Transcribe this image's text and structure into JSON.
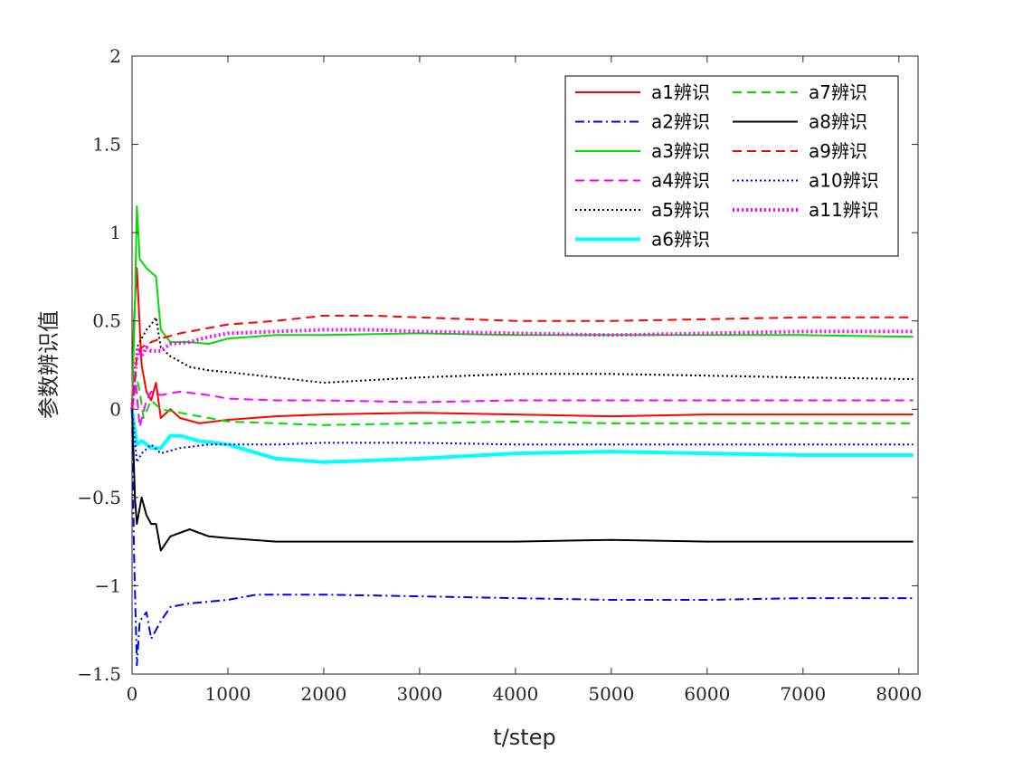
{
  "chart_data": {
    "type": "line",
    "title": "",
    "xlabel": "t/step",
    "ylabel": "参数辨识值",
    "xlim": [
      0,
      8200
    ],
    "ylim": [
      -1.5,
      2
    ],
    "xticks": [
      "0",
      "1000",
      "2000",
      "3000",
      "4000",
      "5000",
      "6000",
      "7000",
      "8000"
    ],
    "yticks": [
      "−1.5",
      "−1",
      "−0.5",
      "0",
      "0.5",
      "1",
      "1.5",
      "2"
    ],
    "grid": false,
    "legend_position": "top-right",
    "series": [
      {
        "name": "a1辨识",
        "color": "#ff0000",
        "dash": "solid",
        "width": 2,
        "points": [
          [
            0,
            0
          ],
          [
            20,
            0.5
          ],
          [
            50,
            0.8
          ],
          [
            100,
            0.25
          ],
          [
            150,
            0.1
          ],
          [
            200,
            0.05
          ],
          [
            250,
            0.15
          ],
          [
            300,
            -0.05
          ],
          [
            400,
            0
          ],
          [
            500,
            -0.05
          ],
          [
            700,
            -0.08
          ],
          [
            1000,
            -0.06
          ],
          [
            1500,
            -0.04
          ],
          [
            2000,
            -0.03
          ],
          [
            3000,
            -0.02
          ],
          [
            4000,
            -0.03
          ],
          [
            5000,
            -0.04
          ],
          [
            6000,
            -0.03
          ],
          [
            7000,
            -0.03
          ],
          [
            8150,
            -0.03
          ]
        ]
      },
      {
        "name": "a2辨识",
        "color": "#0000ff",
        "dash": "dashdot",
        "width": 2,
        "points": [
          [
            0,
            0
          ],
          [
            20,
            -0.8
          ],
          [
            50,
            -1.45
          ],
          [
            80,
            -1.2
          ],
          [
            150,
            -1.15
          ],
          [
            200,
            -1.3
          ],
          [
            250,
            -1.25
          ],
          [
            300,
            -1.2
          ],
          [
            400,
            -1.12
          ],
          [
            600,
            -1.1
          ],
          [
            800,
            -1.09
          ],
          [
            1000,
            -1.08
          ],
          [
            1300,
            -1.05
          ],
          [
            2000,
            -1.05
          ],
          [
            3000,
            -1.06
          ],
          [
            4000,
            -1.07
          ],
          [
            5000,
            -1.08
          ],
          [
            6000,
            -1.08
          ],
          [
            7000,
            -1.07
          ],
          [
            8150,
            -1.07
          ]
        ]
      },
      {
        "name": "a3辨识",
        "color": "#00dd00",
        "dash": "solid",
        "width": 2,
        "points": [
          [
            0,
            0
          ],
          [
            30,
            0.6
          ],
          [
            50,
            1.15
          ],
          [
            80,
            0.85
          ],
          [
            150,
            0.8
          ],
          [
            250,
            0.75
          ],
          [
            300,
            0.45
          ],
          [
            400,
            0.38
          ],
          [
            600,
            0.38
          ],
          [
            800,
            0.37
          ],
          [
            1000,
            0.4
          ],
          [
            1500,
            0.42
          ],
          [
            2000,
            0.42
          ],
          [
            3000,
            0.43
          ],
          [
            4000,
            0.42
          ],
          [
            5000,
            0.42
          ],
          [
            6000,
            0.42
          ],
          [
            7000,
            0.42
          ],
          [
            8150,
            0.41
          ]
        ]
      },
      {
        "name": "a4辨识",
        "color": "#ff00ff",
        "dash": "dashed",
        "width": 2,
        "points": [
          [
            0,
            0
          ],
          [
            40,
            0.15
          ],
          [
            80,
            -0.1
          ],
          [
            150,
            0.05
          ],
          [
            200,
            0.1
          ],
          [
            300,
            0.08
          ],
          [
            500,
            0.1
          ],
          [
            800,
            0.08
          ],
          [
            1000,
            0.06
          ],
          [
            1500,
            0.05
          ],
          [
            2000,
            0.05
          ],
          [
            3000,
            0.04
          ],
          [
            4000,
            0.05
          ],
          [
            5000,
            0.05
          ],
          [
            6000,
            0.05
          ],
          [
            7000,
            0.05
          ],
          [
            8150,
            0.05
          ]
        ]
      },
      {
        "name": "a5辨识",
        "color": "#000000",
        "dash": "dotted",
        "width": 2,
        "points": [
          [
            0,
            0
          ],
          [
            50,
            0.35
          ],
          [
            100,
            0.4
          ],
          [
            150,
            0.45
          ],
          [
            200,
            0.48
          ],
          [
            250,
            0.52
          ],
          [
            300,
            0.35
          ],
          [
            400,
            0.3
          ],
          [
            500,
            0.27
          ],
          [
            600,
            0.24
          ],
          [
            800,
            0.22
          ],
          [
            1000,
            0.21
          ],
          [
            1500,
            0.18
          ],
          [
            2000,
            0.15
          ],
          [
            3000,
            0.18
          ],
          [
            4000,
            0.2
          ],
          [
            5000,
            0.2
          ],
          [
            6000,
            0.19
          ],
          [
            7000,
            0.18
          ],
          [
            8150,
            0.17
          ]
        ]
      },
      {
        "name": "a6辨识",
        "color": "#00ffff",
        "dash": "solid",
        "width": 4,
        "points": [
          [
            0,
            0
          ],
          [
            50,
            -0.2
          ],
          [
            100,
            -0.18
          ],
          [
            200,
            -0.22
          ],
          [
            300,
            -0.22
          ],
          [
            400,
            -0.15
          ],
          [
            500,
            -0.15
          ],
          [
            700,
            -0.18
          ],
          [
            1000,
            -0.2
          ],
          [
            1500,
            -0.28
          ],
          [
            2000,
            -0.3
          ],
          [
            3000,
            -0.28
          ],
          [
            4000,
            -0.25
          ],
          [
            5000,
            -0.24
          ],
          [
            6000,
            -0.25
          ],
          [
            7000,
            -0.26
          ],
          [
            8150,
            -0.26
          ]
        ]
      },
      {
        "name": "a7辨识",
        "color": "#00dd00",
        "dash": "dashed",
        "width": 2,
        "points": [
          [
            0,
            0
          ],
          [
            40,
            0.2
          ],
          [
            80,
            0.1
          ],
          [
            120,
            -0.05
          ],
          [
            200,
            0.05
          ],
          [
            300,
            0
          ],
          [
            500,
            -0.02
          ],
          [
            800,
            -0.05
          ],
          [
            1000,
            -0.07
          ],
          [
            1500,
            -0.08
          ],
          [
            2000,
            -0.09
          ],
          [
            3000,
            -0.08
          ],
          [
            4000,
            -0.07
          ],
          [
            5000,
            -0.08
          ],
          [
            6000,
            -0.08
          ],
          [
            7000,
            -0.08
          ],
          [
            8150,
            -0.08
          ]
        ]
      },
      {
        "name": "a8辨识",
        "color": "#000000",
        "dash": "solid",
        "width": 2,
        "points": [
          [
            0,
            0
          ],
          [
            30,
            -0.5
          ],
          [
            50,
            -0.65
          ],
          [
            100,
            -0.5
          ],
          [
            150,
            -0.6
          ],
          [
            200,
            -0.65
          ],
          [
            250,
            -0.65
          ],
          [
            300,
            -0.8
          ],
          [
            400,
            -0.72
          ],
          [
            600,
            -0.68
          ],
          [
            800,
            -0.72
          ],
          [
            1000,
            -0.73
          ],
          [
            1500,
            -0.75
          ],
          [
            2000,
            -0.75
          ],
          [
            3000,
            -0.75
          ],
          [
            4000,
            -0.75
          ],
          [
            5000,
            -0.74
          ],
          [
            6000,
            -0.75
          ],
          [
            7000,
            -0.75
          ],
          [
            8150,
            -0.75
          ]
        ]
      },
      {
        "name": "a9辨识",
        "color": "#ff0000",
        "dash": "dashed",
        "width": 2,
        "points": [
          [
            0,
            0
          ],
          [
            50,
            0.3
          ],
          [
            100,
            0.35
          ],
          [
            200,
            0.38
          ],
          [
            300,
            0.4
          ],
          [
            500,
            0.43
          ],
          [
            800,
            0.46
          ],
          [
            1000,
            0.48
          ],
          [
            1500,
            0.5
          ],
          [
            2000,
            0.53
          ],
          [
            2500,
            0.53
          ],
          [
            3000,
            0.52
          ],
          [
            4000,
            0.5
          ],
          [
            5000,
            0.5
          ],
          [
            6000,
            0.51
          ],
          [
            7000,
            0.52
          ],
          [
            8150,
            0.52
          ]
        ]
      },
      {
        "name": "a10辨识",
        "color": "#0000ff",
        "dash": "dotted",
        "width": 2,
        "points": [
          [
            0,
            0
          ],
          [
            50,
            -0.3
          ],
          [
            100,
            -0.25
          ],
          [
            200,
            -0.2
          ],
          [
            300,
            -0.25
          ],
          [
            500,
            -0.22
          ],
          [
            800,
            -0.2
          ],
          [
            1000,
            -0.2
          ],
          [
            1500,
            -0.2
          ],
          [
            2000,
            -0.19
          ],
          [
            3000,
            -0.19
          ],
          [
            4000,
            -0.2
          ],
          [
            5000,
            -0.2
          ],
          [
            6000,
            -0.2
          ],
          [
            7000,
            -0.2
          ],
          [
            8150,
            -0.2
          ]
        ]
      },
      {
        "name": "a11辨识",
        "color": "#ff00ff",
        "dash": "dotted",
        "width": 4,
        "points": [
          [
            0,
            0
          ],
          [
            30,
            0.2
          ],
          [
            60,
            0.35
          ],
          [
            100,
            0.3
          ],
          [
            150,
            0.35
          ],
          [
            200,
            0.33
          ],
          [
            300,
            0.33
          ],
          [
            400,
            0.37
          ],
          [
            600,
            0.38
          ],
          [
            800,
            0.41
          ],
          [
            1000,
            0.43
          ],
          [
            1500,
            0.44
          ],
          [
            2000,
            0.45
          ],
          [
            2500,
            0.45
          ],
          [
            3000,
            0.44
          ],
          [
            4000,
            0.43
          ],
          [
            5000,
            0.42
          ],
          [
            6000,
            0.43
          ],
          [
            7000,
            0.44
          ],
          [
            8150,
            0.44
          ]
        ]
      }
    ]
  }
}
